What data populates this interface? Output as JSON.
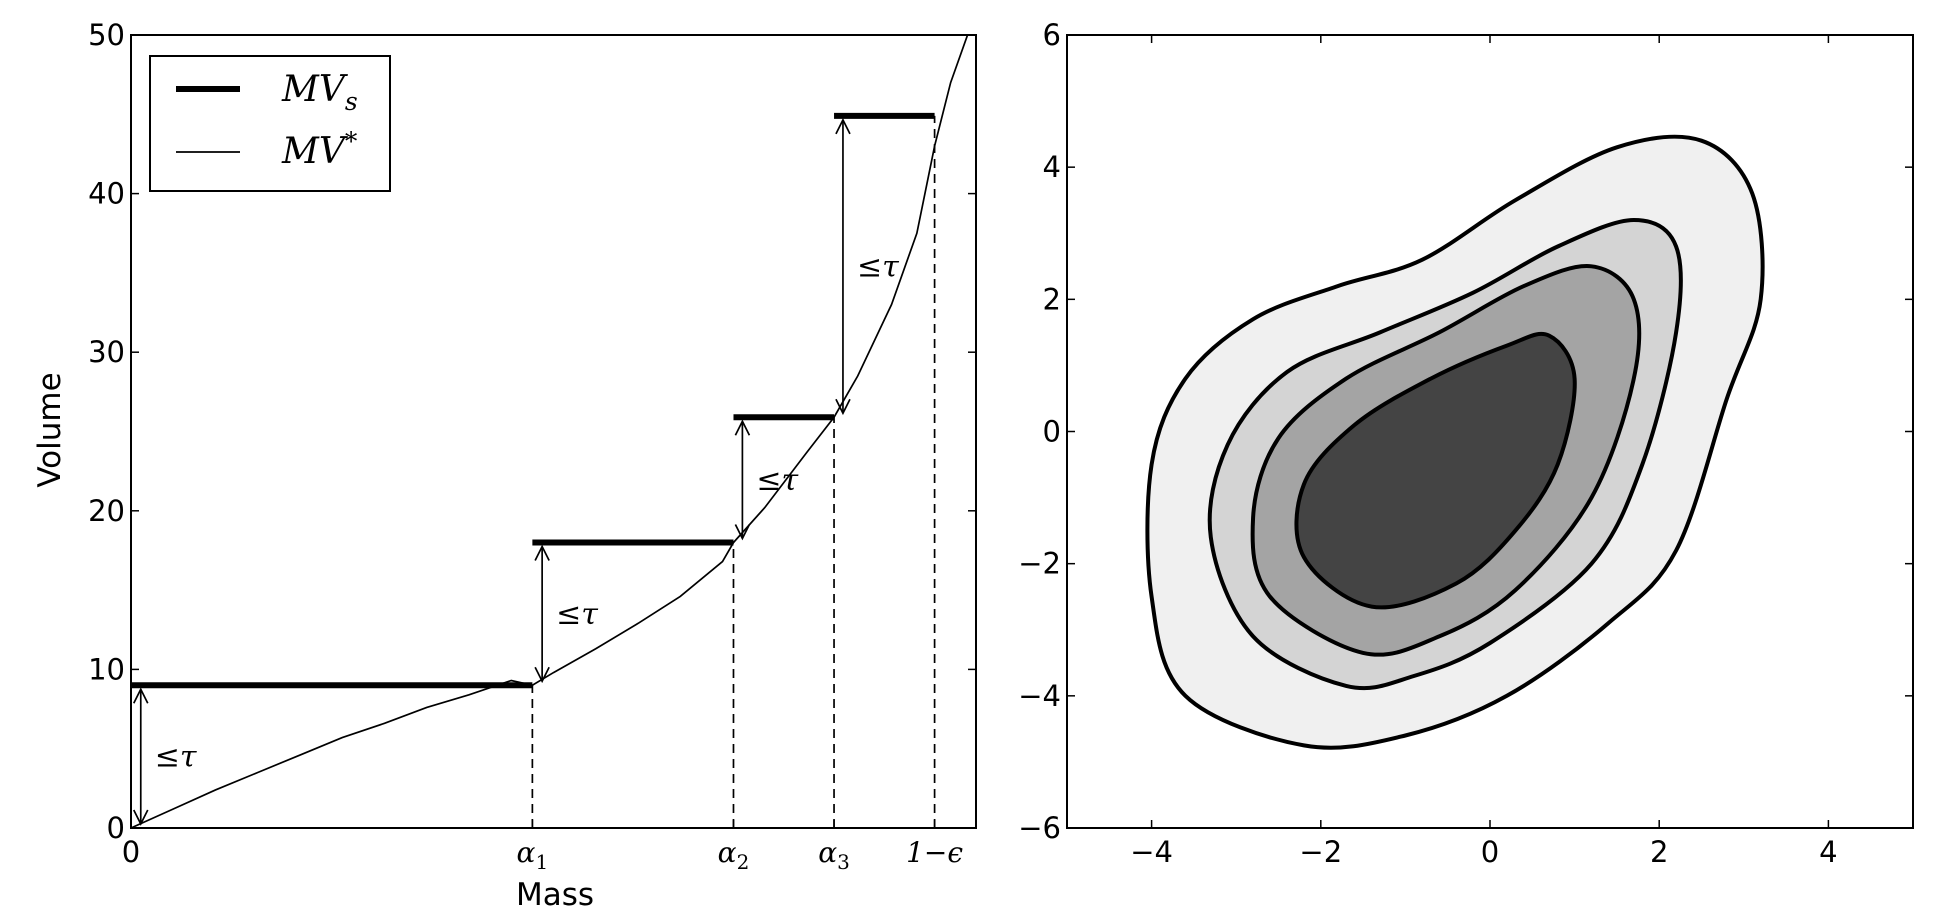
{
  "chart_data": [
    {
      "type": "line",
      "xlabel": "Mass",
      "ylabel": "Volume",
      "ylim": [
        0,
        50
      ],
      "yticks": [
        0,
        10,
        20,
        30,
        40,
        50
      ],
      "x_tick_labels": [
        {
          "main": "0",
          "sub": ""
        },
        {
          "main": "α",
          "sub": "1"
        },
        {
          "main": "α",
          "sub": "2"
        },
        {
          "main": "α",
          "sub": "3"
        },
        {
          "main": "1−ϵ",
          "sub": ""
        }
      ],
      "x_tick_values": [
        0,
        0.475,
        0.713,
        0.832,
        0.951
      ],
      "xlim": [
        0,
        1
      ],
      "legend": {
        "placement": "top-left",
        "entries": [
          {
            "main": "MV",
            "sup": "",
            "sub": "s",
            "style": "thick"
          },
          {
            "main": "MV",
            "sup": "*",
            "sub": "",
            "style": "thin"
          }
        ]
      },
      "series": [
        {
          "name": "MV_s",
          "style": "step",
          "steps": [
            {
              "x0": 0,
              "x1": 0.475,
              "y": 9
            },
            {
              "x0": 0.475,
              "x1": 0.713,
              "y": 18
            },
            {
              "x0": 0.713,
              "x1": 0.832,
              "y": 25.9
            },
            {
              "x0": 0.832,
              "x1": 0.951,
              "y": 44.9
            }
          ]
        },
        {
          "name": "MV*",
          "style": "curve",
          "x": [
            0,
            0.05,
            0.1,
            0.15,
            0.2,
            0.25,
            0.3,
            0.35,
            0.4,
            0.45,
            0.475,
            0.5,
            0.55,
            0.6,
            0.65,
            0.7,
            0.713,
            0.75,
            0.8,
            0.832,
            0.86,
            0.9,
            0.93,
            0.951,
            0.97,
            0.99,
            1.0
          ],
          "y": [
            0,
            1.2,
            2.4,
            3.5,
            4.6,
            5.7,
            6.6,
            7.6,
            8.4,
            9.3,
            9.0,
            9.8,
            11.3,
            12.9,
            14.6,
            16.8,
            18.0,
            20.2,
            23.7,
            25.9,
            28.5,
            33.0,
            37.5,
            43.0,
            47.0,
            50.0,
            50.0
          ]
        }
      ],
      "annotations": [
        {
          "text": "≤τ",
          "x_from": 0.008,
          "y_from": 0,
          "y_to": 9
        },
        {
          "text": "≤τ",
          "x_from": 0.483,
          "y_from": 9,
          "y_to": 18
        },
        {
          "text": "≤τ",
          "x_from": 0.72,
          "y_from": 18,
          "y_to": 25.9
        },
        {
          "text": "≤τ",
          "x_from": 0.839,
          "y_from": 25.9,
          "y_to": 44.9
        }
      ]
    },
    {
      "type": "contour",
      "xlim": [
        -5,
        5
      ],
      "ylim": [
        -6,
        6
      ],
      "xticks": [
        -4,
        -2,
        0,
        2,
        4
      ],
      "yticks": [
        -6,
        -4,
        -2,
        0,
        2,
        4,
        6
      ],
      "x_tick_labels": [
        "−4",
        "−2",
        "0",
        "2",
        "4"
      ],
      "y_tick_labels": [
        "−6",
        "−4",
        "−2",
        "0",
        "2",
        "4",
        "6"
      ],
      "level_fills": [
        "#f0f0f0",
        "#d4d4d4",
        "#a4a4a4",
        "#444444"
      ],
      "levels": [
        {
          "points": [
            [
              -2.2,
              -4.75
            ],
            [
              -3.6,
              -4.0
            ],
            [
              -4.0,
              -2.5
            ],
            [
              -4.0,
              -0.5
            ],
            [
              -3.6,
              0.8
            ],
            [
              -2.8,
              1.7
            ],
            [
              -1.8,
              2.2
            ],
            [
              -0.8,
              2.6
            ],
            [
              0.3,
              3.5
            ],
            [
              1.5,
              4.3
            ],
            [
              2.5,
              4.4
            ],
            [
              3.1,
              3.6
            ],
            [
              3.2,
              2.0
            ],
            [
              2.8,
              0.5
            ],
            [
              2.2,
              -1.8
            ],
            [
              1.4,
              -2.9
            ],
            [
              0.2,
              -4.0
            ],
            [
              -1.0,
              -4.6
            ]
          ]
        },
        {
          "points": [
            [
              -1.7,
              -3.85
            ],
            [
              -2.8,
              -3.1
            ],
            [
              -3.3,
              -1.6
            ],
            [
              -3.1,
              -0.2
            ],
            [
              -2.4,
              0.9
            ],
            [
              -1.3,
              1.5
            ],
            [
              -0.2,
              2.1
            ],
            [
              0.8,
              2.8
            ],
            [
              1.7,
              3.2
            ],
            [
              2.2,
              2.8
            ],
            [
              2.2,
              1.5
            ],
            [
              1.8,
              -0.5
            ],
            [
              1.2,
              -2.0
            ],
            [
              0.0,
              -3.2
            ],
            [
              -0.9,
              -3.7
            ]
          ]
        },
        {
          "points": [
            [
              -1.5,
              -3.35
            ],
            [
              -2.6,
              -2.5
            ],
            [
              -2.8,
              -1.3
            ],
            [
              -2.5,
              -0.1
            ],
            [
              -1.7,
              0.8
            ],
            [
              -0.6,
              1.5
            ],
            [
              0.4,
              2.2
            ],
            [
              1.2,
              2.5
            ],
            [
              1.7,
              2.0
            ],
            [
              1.7,
              0.8
            ],
            [
              1.2,
              -1.0
            ],
            [
              0.3,
              -2.4
            ],
            [
              -0.6,
              -3.1
            ]
          ]
        },
        {
          "points": [
            [
              -1.4,
              -2.65
            ],
            [
              -2.2,
              -1.9
            ],
            [
              -2.2,
              -0.8
            ],
            [
              -1.6,
              0.1
            ],
            [
              -0.7,
              0.8
            ],
            [
              0.2,
              1.3
            ],
            [
              0.7,
              1.45
            ],
            [
              1.0,
              0.8
            ],
            [
              0.8,
              -0.5
            ],
            [
              0.3,
              -1.5
            ],
            [
              -0.4,
              -2.3
            ]
          ]
        }
      ]
    }
  ]
}
